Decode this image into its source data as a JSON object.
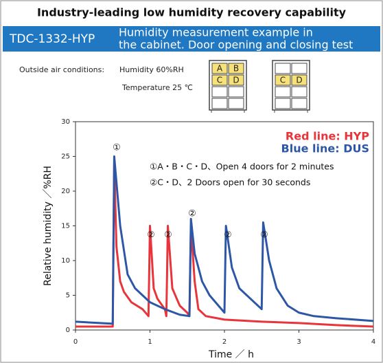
{
  "header": {
    "title": "Industry-leading low humidity recovery capability",
    "model": "TDC-1332-HYP",
    "subtitle_lines": [
      "Humidity measurement example in",
      "the cabinet.  Door opening and closing test"
    ],
    "conditions_label": "Outside air conditions:",
    "humidity": "Humidity 60%RH",
    "temperature": "Temperature 25 ℃",
    "cabinets": [
      [
        "A",
        "B",
        "C",
        "D"
      ],
      [
        "C",
        "D"
      ]
    ]
  },
  "chart_data": {
    "type": "line",
    "xlabel": "Time ／ h",
    "ylabel": "Relative humidity ／%RH",
    "xlim": [
      0,
      4
    ],
    "xticks": [
      0,
      1,
      2,
      3,
      4
    ],
    "ylim": [
      0,
      30
    ],
    "yticks": [
      0,
      5,
      10,
      15,
      20,
      25,
      30
    ],
    "annotations": [
      "①A・B・C・D、Open 4 doors for 2 minutes",
      "②C・D、2 Doors open for 30 seconds"
    ],
    "markers": [
      "①",
      "②",
      "②",
      "②",
      "②",
      "②"
    ],
    "series": [
      {
        "name": "Red line: HYP",
        "color": "#e8343a",
        "x": [
          0,
          0.5,
          0.52,
          0.55,
          0.6,
          0.65,
          0.75,
          0.9,
          0.98,
          1.0,
          1.05,
          1.1,
          1.2,
          1.22,
          1.24,
          1.3,
          1.4,
          1.5,
          1.53,
          1.55,
          1.6,
          1.65,
          1.75,
          2,
          2.5,
          3,
          3.5,
          4
        ],
        "values": [
          0.5,
          0.5,
          24,
          12,
          7,
          5.5,
          4,
          3,
          2,
          15,
          6,
          4.5,
          3,
          2,
          15,
          6,
          3.5,
          2.5,
          2,
          15,
          7,
          3,
          2,
          1.5,
          1.2,
          1,
          0.7,
          0.5
        ]
      },
      {
        "name": "Blue line: DUS",
        "color": "#2d57a6",
        "x": [
          0,
          0.5,
          0.52,
          0.6,
          0.7,
          0.8,
          1.0,
          1.2,
          1.4,
          1.53,
          1.55,
          1.6,
          1.7,
          1.8,
          2.0,
          2.02,
          2.1,
          2.2,
          2.35,
          2.5,
          2.52,
          2.6,
          2.7,
          2.85,
          3,
          3.2,
          3.5,
          4
        ],
        "values": [
          1.2,
          0.9,
          25,
          15,
          8,
          6,
          4,
          3,
          2.2,
          2,
          16,
          11,
          7,
          5,
          2.5,
          15,
          9,
          6,
          4.5,
          3,
          15.5,
          10,
          6,
          3.5,
          2.5,
          2,
          1.7,
          1.3
        ]
      }
    ]
  }
}
